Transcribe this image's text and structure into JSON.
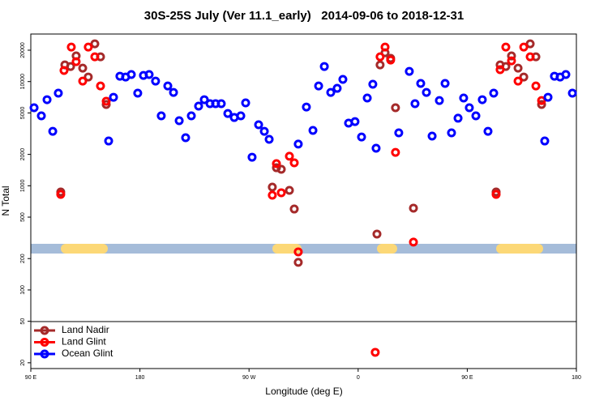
{
  "chart_data": {
    "type": "scatter",
    "title": "30S-25S July (Ver 11.1_early)   2014-09-06 to 2018-12-31",
    "x_label": "Longitude (deg E)",
    "y_label": "N Total",
    "log_y": true,
    "legend_position": "bottom-left",
    "xlim": [
      90,
      540
    ],
    "ylim": [
      17.6,
      28600
    ],
    "xticks": [
      {
        "value": 90,
        "label": "90 E"
      },
      180,
      {
        "value": 270,
        "label": "90 W"
      },
      {
        "value": 360,
        "label": "0"
      },
      {
        "value": 450,
        "label": "90 E"
      },
      {
        "value": 540,
        "label": "180"
      }
    ],
    "yticks": [
      20,
      50,
      100,
      200,
      500,
      1000,
      2000,
      5000,
      10000,
      20000
    ],
    "series": [
      {
        "name": "Land Nadir",
        "color": "#a52a2a",
        "x": [
          114.7,
          118.1,
          122.8,
          127.4,
          132.8,
          137.4,
          142.8,
          147.5,
          152.2,
          289.2,
          292.6,
          296.6,
          303.3,
          307.3,
          310.6,
          375.5,
          378.1,
          382.2,
          386.8,
          390.8,
          405.6,
          473.8,
          477.1,
          481.8,
          486.5,
          491.9,
          496.6,
          501.9,
          506.6,
          511.3
        ],
        "values": [
          871,
          14460,
          13960,
          17620,
          13460,
          11060,
          23030,
          17300,
          6030,
          971,
          1490,
          1440,
          904,
          598,
          184,
          344,
          14460,
          18920,
          16700,
          5610,
          610,
          871,
          14460,
          13960,
          17620,
          13460,
          11060,
          23030,
          17300,
          6030
        ]
      },
      {
        "name": "Land Glint",
        "color": "#ff0000",
        "x": [
          114.7,
          117.4,
          123.4,
          127.4,
          132.8,
          137.4,
          142.8,
          147.5,
          152.2,
          289.2,
          292.6,
          296.6,
          303.3,
          307.3,
          310.6,
          374.1,
          378.1,
          382.2,
          386.8,
          390.8,
          405.6,
          473.8,
          477.1,
          481.8,
          486.5,
          491.9,
          496.6,
          501.9,
          506.6,
          511.3
        ],
        "values": [
          826,
          12770,
          21440,
          15530,
          10110,
          21440,
          17300,
          9080,
          6470,
          812,
          1630,
          857,
          1920,
          1660,
          232,
          25.2,
          17300,
          21440,
          16100,
          2090,
          288,
          826,
          13000,
          21440,
          15820,
          10110,
          21440,
          17300,
          9080,
          6580
        ]
      },
      {
        "name": "Ocean Glint",
        "color": "#0000ff",
        "x": [
          92.7,
          98.7,
          103.4,
          108.1,
          112.7,
          154.2,
          158.2,
          163.5,
          168.2,
          172.9,
          178.2,
          182.9,
          187.6,
          192.9,
          197.6,
          203,
          207.7,
          212.4,
          217.7,
          222.4,
          228.4,
          233.1,
          237.8,
          242.4,
          247.1,
          252.5,
          257.8,
          263.2,
          267.2,
          272.5,
          277.9,
          282.6,
          286.6,
          310.6,
          317.3,
          322.7,
          327.4,
          332.1,
          337.4,
          342.7,
          347.4,
          352.1,
          357.4,
          362.8,
          367.5,
          372.1,
          374.8,
          393.5,
          402.2,
          406.9,
          411.6,
          416.3,
          421,
          427,
          431.7,
          437,
          442.4,
          447,
          451.7,
          457.1,
          462.4,
          467.1,
          471.8,
          513.9,
          516.6,
          521.9,
          526.6,
          531.3,
          536.7
        ],
        "values": [
          5610,
          4690,
          6700,
          3330,
          7740,
          2690,
          7070,
          11260,
          11060,
          11680,
          7740,
          11460,
          11680,
          10110,
          4690,
          9080,
          7870,
          4210,
          2890,
          4690,
          5810,
          6700,
          6130,
          6130,
          6130,
          4940,
          4520,
          4690,
          6240,
          1880,
          3850,
          3330,
          2790,
          2510,
          5700,
          3400,
          9080,
          13960,
          7870,
          8610,
          10500,
          3990,
          4130,
          2940,
          6950,
          9420,
          2290,
          3220,
          12530,
          6130,
          9600,
          7870,
          3000,
          6580,
          9600,
          3220,
          4450,
          6950,
          5610,
          4690,
          6700,
          3330,
          7740,
          2690,
          7070,
          11260,
          11060,
          11680,
          7740
        ]
      }
    ]
  }
}
